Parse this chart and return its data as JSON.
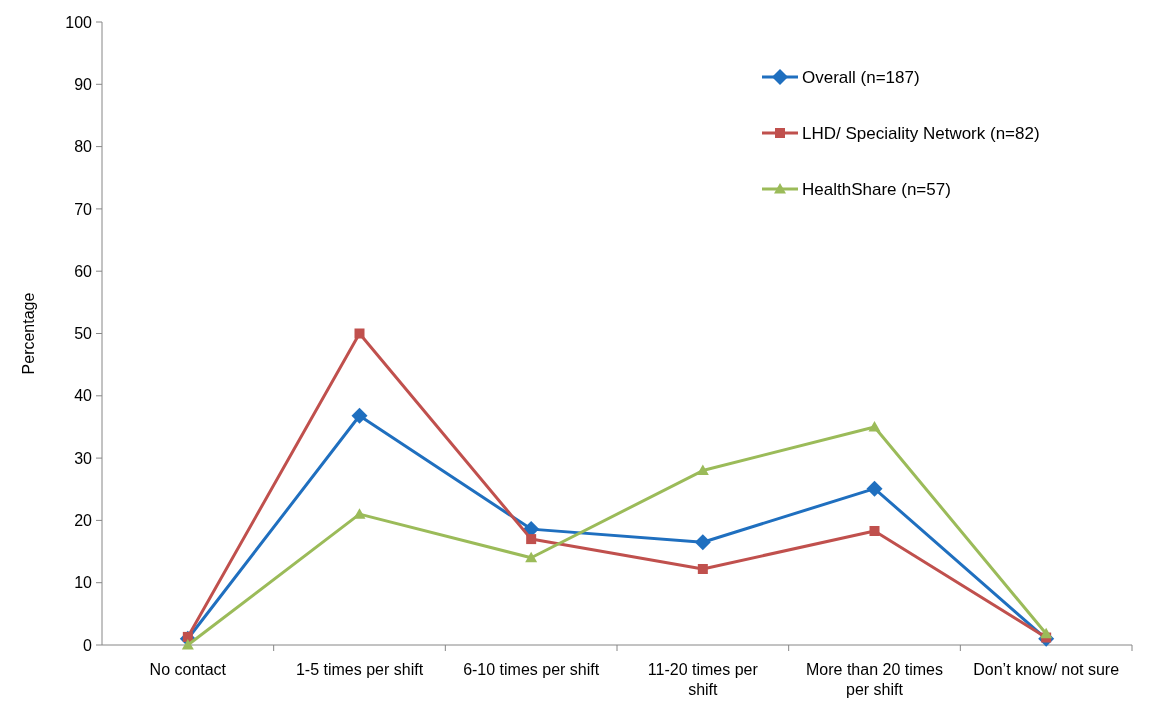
{
  "chart_data": {
    "type": "line",
    "ylabel": "Percentage",
    "categories": [
      "No contact",
      "1-5 times per shift",
      "6-10 times per shift",
      "11-20 times per shift",
      "More than 20 times per shift",
      "Don’t know/ not sure"
    ],
    "ylim": [
      0,
      100
    ],
    "yticks": [
      0,
      10,
      20,
      30,
      40,
      50,
      60,
      70,
      80,
      90,
      100
    ],
    "grid": false,
    "legend": "top right",
    "series": [
      {
        "name": "Overall (n=187)",
        "color": "#1f6fbf",
        "marker": "diamond",
        "values": [
          1,
          36.8,
          18.6,
          16.5,
          25.1,
          1
        ]
      },
      {
        "name": "LHD/ Speciality Network (n=82)",
        "color": "#c0504d",
        "marker": "square",
        "values": [
          1.3,
          50,
          17,
          12.2,
          18.3,
          1.2
        ]
      },
      {
        "name": "HealthShare (n=57)",
        "color": "#9bbb59",
        "marker": "triangle",
        "values": [
          0,
          21,
          14,
          28,
          35,
          1.8
        ]
      }
    ]
  }
}
